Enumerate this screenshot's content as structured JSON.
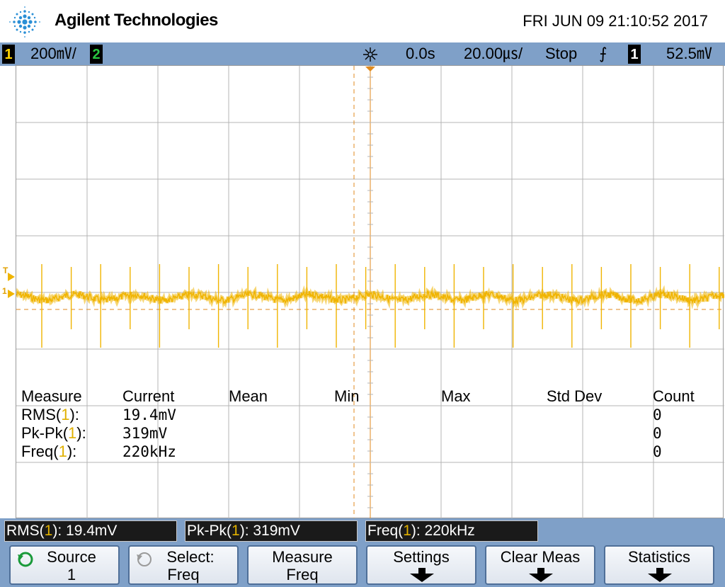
{
  "header": {
    "brand": "Agilent Technologies",
    "datetime": "FRI JUN 09 21:10:52 2017"
  },
  "statusbar": {
    "ch1_label": "1",
    "ch1_scale": "200㎷/",
    "ch2_label": "2",
    "delay": "0.0s",
    "timebase": "20.00㎲/",
    "run_state": "Stop",
    "trigger_slope": "⨍",
    "trigger_channel": "1",
    "trigger_level": "52.5㎷"
  },
  "markers": {
    "trigger_level": "T",
    "ch1_ground": "1"
  },
  "measure_table": {
    "headers": [
      "Measure",
      "Current",
      "Mean",
      "Min",
      "Max",
      "Std Dev",
      "Count"
    ],
    "rows": [
      {
        "name": "RMS",
        "channel": "1",
        "current": "19.4mV",
        "count": "0"
      },
      {
        "name": "Pk-Pk",
        "channel": "1",
        "current": "319mV",
        "count": "0"
      },
      {
        "name": "Freq",
        "channel": "1",
        "current": "220kHz",
        "count": "0"
      }
    ]
  },
  "readouts": [
    {
      "name": "RMS",
      "channel": "1",
      "value": "19.4mV"
    },
    {
      "name": "Pk-Pk",
      "channel": "1",
      "value": "319mV"
    },
    {
      "name": "Freq",
      "channel": "1",
      "value": "220kHz"
    }
  ],
  "softkeys": [
    {
      "line1": "Source",
      "line2": "1"
    },
    {
      "line1": "Select:",
      "line2": "Freq"
    },
    {
      "line1": "Measure",
      "line2": "Freq"
    },
    {
      "line1": "Settings",
      "line2": ""
    },
    {
      "line1": "Clear Meas",
      "line2": ""
    },
    {
      "line1": "Statistics",
      "line2": ""
    }
  ],
  "colors": {
    "ch1": "#f0b400",
    "ch2": "#28c840",
    "statusbar": "#7fa0c8",
    "grid": "#b4b4b4",
    "cursor": "#e08a1e"
  }
}
